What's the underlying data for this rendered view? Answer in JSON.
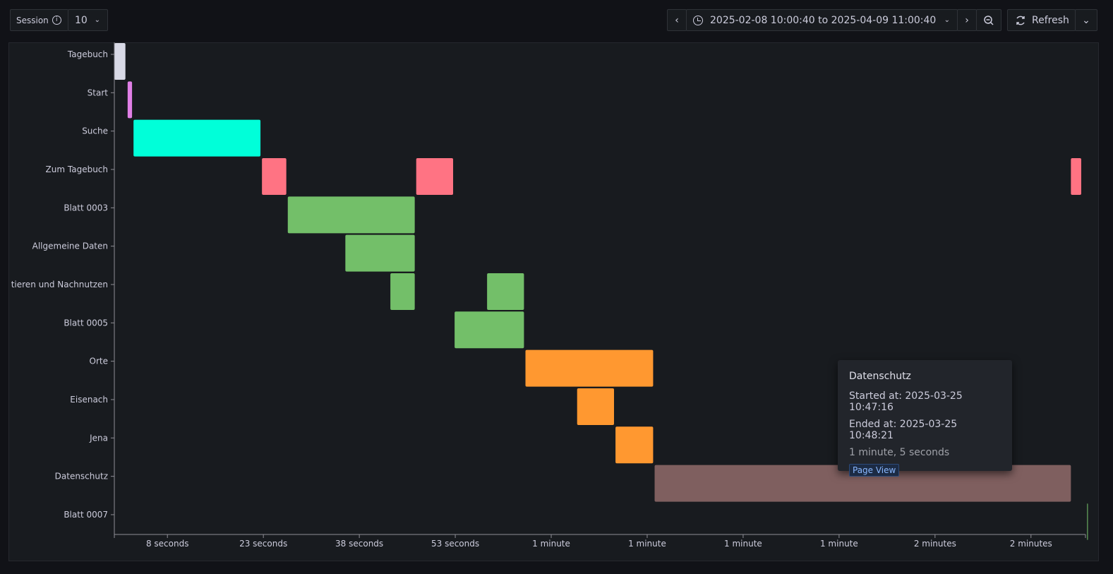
{
  "toolbar": {
    "session_label": "Session",
    "session_value": "10",
    "time_range": "2025-02-08 10:00:40 to 2025-04-09 11:00:40",
    "refresh_label": "Refresh"
  },
  "chart_data": {
    "type": "gantt",
    "title": "",
    "xlabel": "",
    "ylabel": "",
    "x_unit": "seconds",
    "xlim": [
      0,
      131
    ],
    "x_ticks": [
      {
        "value": 7,
        "label": "8 seconds"
      },
      {
        "value": 20,
        "label": "23 seconds"
      },
      {
        "value": 33,
        "label": "38 seconds"
      },
      {
        "value": 46,
        "label": "53 seconds"
      },
      {
        "value": 59,
        "label": "1 minute"
      },
      {
        "value": 72,
        "label": "1 minute"
      },
      {
        "value": 85,
        "label": "1 minute"
      },
      {
        "value": 98,
        "label": "1 minute"
      },
      {
        "value": 111,
        "label": "2 minutes"
      },
      {
        "value": 124,
        "label": "2 minutes"
      }
    ],
    "rows": [
      "Tagebuch",
      "Start",
      "Suche",
      "Zum Tagebuch",
      "Blatt 0003",
      "Allgemeine Daten",
      "tieren und Nachnutzen",
      "Blatt 0005",
      "Orte",
      "Eisenach",
      "Jena",
      "Datenschutz",
      "Blatt 0007"
    ],
    "bars": [
      {
        "row": "Tagebuch",
        "start": 0.0,
        "end": 1.5,
        "color": "#d8d9e6"
      },
      {
        "row": "Start",
        "start": 1.8,
        "end": 2.4,
        "color": "#e07fe6"
      },
      {
        "row": "Suche",
        "start": 2.6,
        "end": 19.8,
        "color": "#00ffd9"
      },
      {
        "row": "Zum Tagebuch",
        "start": 20.0,
        "end": 23.3,
        "color": "#ff7383"
      },
      {
        "row": "Zum Tagebuch",
        "start": 40.9,
        "end": 45.9,
        "color": "#ff7383"
      },
      {
        "row": "Zum Tagebuch",
        "start": 129.6,
        "end": 131.0,
        "color": "#ff7383"
      },
      {
        "row": "Blatt 0003",
        "start": 23.5,
        "end": 40.7,
        "color": "#73bf69"
      },
      {
        "row": "Allgemeine Daten",
        "start": 31.3,
        "end": 40.7,
        "color": "#73bf69"
      },
      {
        "row": "tieren und Nachnutzen",
        "start": 37.4,
        "end": 40.7,
        "color": "#73bf69"
      },
      {
        "row": "tieren und Nachnutzen",
        "start": 50.5,
        "end": 55.5,
        "color": "#73bf69"
      },
      {
        "row": "Blatt 0005",
        "start": 46.1,
        "end": 55.5,
        "color": "#73bf69"
      },
      {
        "row": "Orte",
        "start": 55.7,
        "end": 73.0,
        "color": "#ff9830"
      },
      {
        "row": "Eisenach",
        "start": 62.7,
        "end": 67.7,
        "color": "#ff9830"
      },
      {
        "row": "Jena",
        "start": 67.9,
        "end": 73.0,
        "color": "#ff9830"
      },
      {
        "row": "Datenschutz",
        "start": 73.2,
        "end": 129.6,
        "color": "#7f5f5f"
      },
      {
        "row": "Blatt 0007",
        "start": 131.8,
        "end": 131.9,
        "color": "#73bf69"
      }
    ]
  },
  "tooltip": {
    "title": "Datenschutz",
    "started": "Started at: 2025-03-25 10:47:16",
    "ended": "Ended at: 2025-03-25 10:48:21",
    "duration": "1 minute, 5 seconds",
    "badge": "Page View"
  }
}
